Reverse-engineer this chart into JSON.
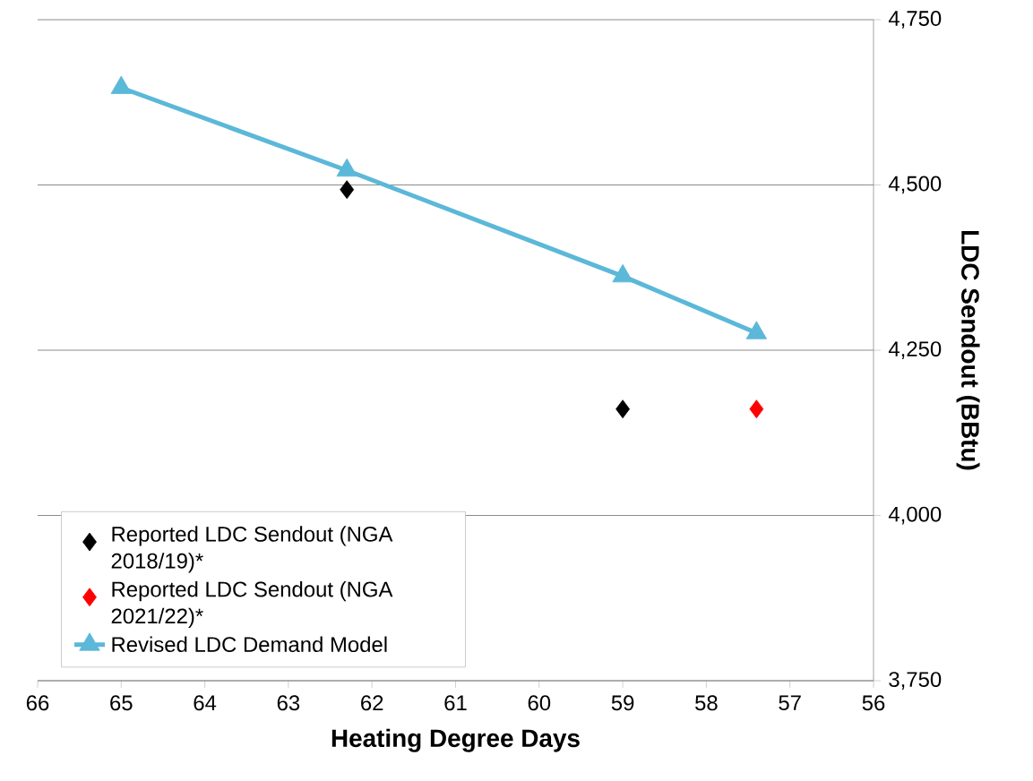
{
  "chart_data": {
    "type": "scatter",
    "xlabel": "Heating Degree Days",
    "ylabel": "LDC Sendout (BBtu)",
    "series": [
      {
        "name": "Reported LDC Sendout (NGA 2018/19)*",
        "marker": "diamond",
        "color": "#000000",
        "x": [
          62.3,
          59.0
        ],
        "values": [
          4493,
          4161
        ]
      },
      {
        "name": "Reported LDC Sendout (NGA 2021/22)*",
        "marker": "diamond",
        "color": "#ff0000",
        "x": [
          57.4
        ],
        "values": [
          4161
        ]
      },
      {
        "name": "Revised LDC Demand Model",
        "type": "line",
        "marker": "triangle",
        "color": "#5bb8d8",
        "x": [
          65.0,
          62.3,
          59.0,
          57.4
        ],
        "values": [
          4647,
          4522,
          4362,
          4276
        ]
      }
    ],
    "xlim": [
      66,
      56
    ],
    "xticks": [
      66,
      65,
      64,
      63,
      62,
      61,
      60,
      59,
      58,
      57,
      56
    ],
    "ylim": [
      3750,
      4750
    ],
    "yticks": [
      {
        "value": 3750,
        "label": "3,750"
      },
      {
        "value": 4000,
        "label": "4,000"
      },
      {
        "value": 4250,
        "label": "4,250"
      },
      {
        "value": 4500,
        "label": "4,500"
      },
      {
        "value": 4750,
        "label": "4,750"
      }
    ],
    "grid": "y",
    "legend": "bottom left"
  }
}
